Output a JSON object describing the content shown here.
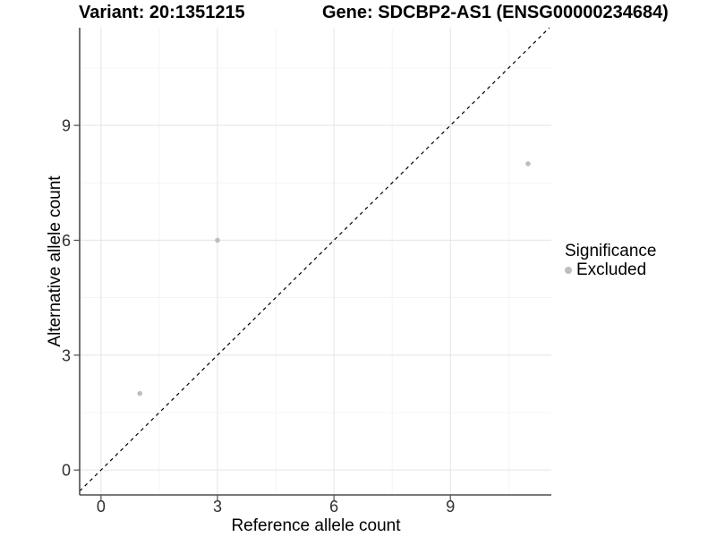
{
  "titles": {
    "variant": "Variant: 20:1351215",
    "gene": "Gene: SDCBP2-AS1 (ENSG00000234684)"
  },
  "legend": {
    "title": "Significance",
    "items": [
      {
        "label": "Excluded",
        "color": "#bebebe"
      }
    ]
  },
  "chart_data": {
    "type": "scatter",
    "title": "Variant: 20:1351215 — Gene: SDCBP2-AS1 (ENSG00000234684)",
    "xlabel": "Reference allele count",
    "ylabel": "Alternative allele count",
    "xlim": [
      -0.55,
      11.6
    ],
    "ylim": [
      -0.65,
      11.55
    ],
    "x_major_ticks": [
      0,
      3,
      6,
      9
    ],
    "y_major_ticks": [
      0,
      3,
      6,
      9
    ],
    "x_minor_ticks": [
      1.5,
      4.5,
      7.5,
      10.5
    ],
    "y_minor_ticks": [
      1.5,
      4.5,
      7.5,
      10.5
    ],
    "grid": "major+minor",
    "legend_position": "right",
    "series": [
      {
        "name": "Excluded",
        "color": "#bebebe",
        "points": [
          {
            "x": 1,
            "y": 2
          },
          {
            "x": 3,
            "y": 6
          },
          {
            "x": 11,
            "y": 8
          }
        ]
      }
    ],
    "identity_line": {
      "equation": "y = x",
      "style": "dashed",
      "color": "#000000"
    },
    "colors": {
      "grid_major": "#e7e7e7",
      "grid_minor": "#f0f0f0",
      "axis_line": "#4d4d4d",
      "tick_text": "#303030",
      "point": "#bebebe"
    }
  }
}
